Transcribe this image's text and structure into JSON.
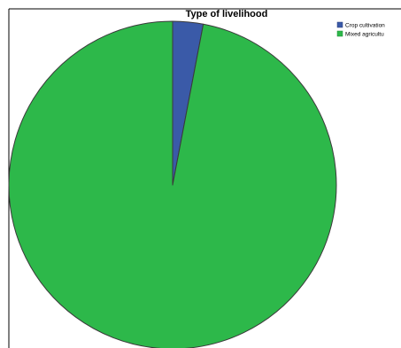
{
  "chart_data": {
    "type": "pie",
    "title": "Type of livelihood",
    "categories": [
      "Crop cultivation",
      "Mixed agriculture"
    ],
    "values": [
      3,
      97
    ],
    "colors": [
      "#3a5aa8",
      "#2db84a"
    ],
    "legend_position": "top-right",
    "grid": false
  },
  "legend": {
    "items": [
      {
        "label": "Crop cultivation",
        "display": "Crop cultivation"
      },
      {
        "label": "Mixed agriculture",
        "display": "Mixed agricultu"
      }
    ]
  }
}
